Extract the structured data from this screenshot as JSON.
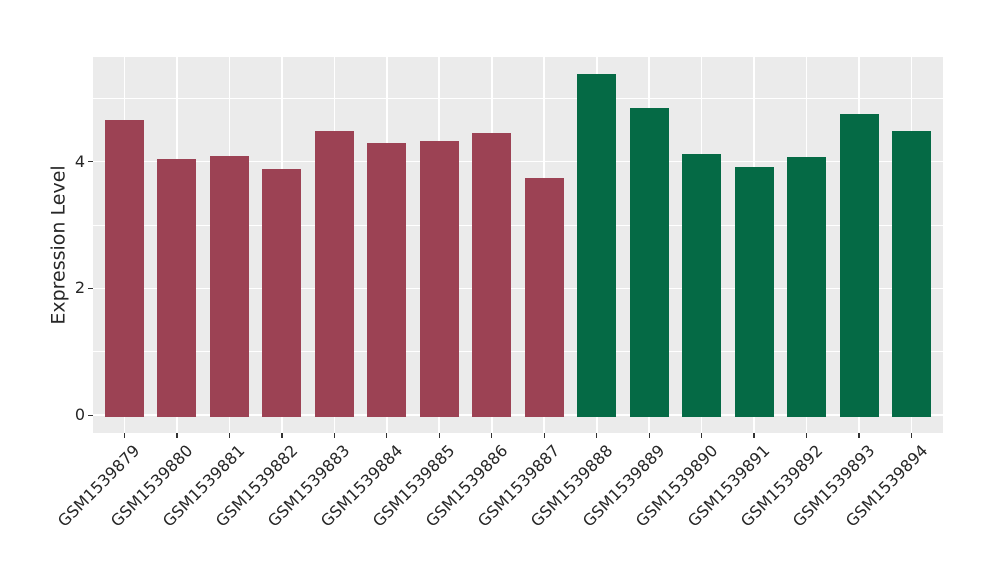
{
  "chart_data": {
    "type": "bar",
    "title": "",
    "xlabel": "",
    "ylabel": "Expression Level",
    "categories": [
      "GSM1539879",
      "GSM1539880",
      "GSM1539881",
      "GSM1539882",
      "GSM1539883",
      "GSM1539884",
      "GSM1539885",
      "GSM1539886",
      "GSM1539887",
      "GSM1539888",
      "GSM1539889",
      "GSM1539890",
      "GSM1539891",
      "GSM1539892",
      "GSM1539893",
      "GSM1539894"
    ],
    "values": [
      4.66,
      4.04,
      4.09,
      3.89,
      4.48,
      4.3,
      4.32,
      4.45,
      3.74,
      5.38,
      4.85,
      4.12,
      3.92,
      4.07,
      4.75,
      4.49
    ],
    "group_of": [
      0,
      0,
      0,
      0,
      0,
      0,
      0,
      0,
      0,
      1,
      1,
      1,
      1,
      1,
      1,
      1
    ],
    "group_colors": [
      "#9C4254",
      "#056A45"
    ],
    "yticks": [
      0,
      2,
      4
    ],
    "yticks_minor": [
      1,
      3,
      5
    ],
    "ylim": [
      -0.28,
      5.65
    ],
    "legend": null,
    "grid": "on",
    "style": {
      "panel_bg": "#EBEBEB",
      "grid_color": "#FFFFFF",
      "text_color": "#262626",
      "tick_color": "#333333"
    }
  }
}
